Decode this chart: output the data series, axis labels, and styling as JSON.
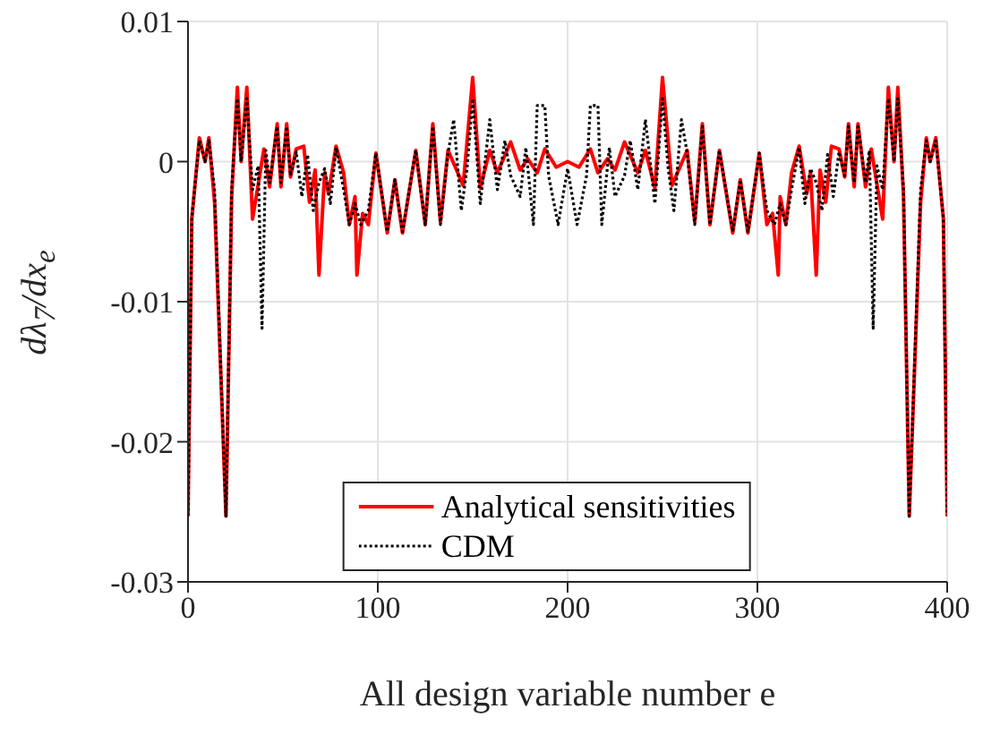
{
  "chart_data": {
    "type": "line",
    "xlabel": "All design variable number e",
    "ylabel": "dλ$_{7}$/dx$_{e}$",
    "xlim": [
      0,
      400
    ],
    "xticks": [
      0,
      100,
      200,
      300,
      400
    ],
    "ylim": [
      -0.03,
      0.01
    ],
    "yticks": [
      -0.03,
      -0.02,
      -0.01,
      0,
      0.01
    ],
    "grid": true,
    "legend": "bottom",
    "series": [
      {
        "name": "Analytical sensitivities",
        "color": "#ff0000",
        "line_style": "solid",
        "x": [
          0,
          2,
          6,
          9,
          11,
          14,
          20,
          23,
          26,
          28,
          31,
          34,
          38,
          40,
          43,
          47,
          49,
          52,
          54,
          57,
          61,
          64,
          67,
          69,
          72,
          74,
          78,
          82,
          85,
          88,
          89,
          92,
          95,
          99,
          105,
          109,
          113,
          120,
          125,
          129,
          133,
          137,
          145,
          150,
          154,
          159,
          163,
          170,
          175,
          179,
          184,
          188,
          194,
          200,
          206,
          212,
          216,
          221,
          225,
          230,
          237,
          241,
          246,
          250,
          255,
          263,
          267,
          271,
          275,
          280,
          287,
          291,
          295,
          301,
          305,
          308,
          311,
          312,
          315,
          318,
          322,
          326,
          328,
          331,
          333,
          336,
          339,
          343,
          346,
          348,
          351,
          353,
          357,
          360,
          362,
          366,
          369,
          372,
          374,
          377,
          380,
          386,
          389,
          391,
          394,
          398,
          400
        ],
        "values": [
          -0.0253,
          -0.0041,
          0.0017,
          0,
          0.0017,
          -0.0029,
          -0.0253,
          -0.0025,
          0.0053,
          0,
          0.0053,
          -0.0041,
          -0.0008,
          0.0009,
          -0.0018,
          0.0027,
          -0.0018,
          0.0027,
          -0.0011,
          0.0009,
          0.0011,
          -0.0029,
          -0.0006,
          -0.0081,
          -0.0008,
          -0.0023,
          0.0011,
          -0.0008,
          -0.0045,
          -0.0025,
          -0.0081,
          -0.0037,
          -0.0045,
          0.0006,
          -0.0051,
          -0.0013,
          -0.0051,
          0.0008,
          -0.0045,
          0.0027,
          -0.0043,
          0.0008,
          -0.0017,
          0.006,
          -0.0019,
          0.0008,
          -0.0008,
          0.0014,
          -0.0006,
          0.0002,
          -0.0008,
          0.0009,
          -0.0004,
          0,
          -0.0004,
          0.0009,
          -0.0008,
          0.0002,
          -0.0006,
          0.0014,
          -0.0008,
          0.0008,
          -0.0019,
          0.006,
          -0.0017,
          0.0008,
          -0.0043,
          0.0027,
          -0.0045,
          0.0008,
          -0.0051,
          -0.0013,
          -0.0051,
          0.0006,
          -0.0045,
          -0.0037,
          -0.0081,
          -0.0025,
          -0.0045,
          -0.0008,
          0.0011,
          -0.0023,
          -0.0008,
          -0.0081,
          -0.0006,
          -0.0029,
          0.0011,
          0.0009,
          -0.0011,
          0.0027,
          -0.0018,
          0.0027,
          -0.0018,
          0.0009,
          -0.0008,
          -0.0041,
          0.0053,
          0,
          0.0053,
          -0.0025,
          -0.0253,
          -0.0029,
          0.0017,
          0,
          0.0017,
          -0.0041,
          -0.0253
        ]
      },
      {
        "name": "CDM",
        "color": "#000000",
        "line_style": "dotted",
        "x": [
          0,
          2,
          6,
          9,
          11,
          14,
          20,
          23,
          26,
          28,
          31,
          34,
          37,
          39,
          41,
          43,
          47,
          49,
          52,
          54,
          57,
          60,
          63,
          66,
          69,
          72,
          75,
          78,
          82,
          85,
          88,
          91,
          95,
          99,
          105,
          109,
          113,
          120,
          125,
          129,
          133,
          137,
          140,
          144,
          147,
          150,
          154,
          159,
          163,
          167,
          170,
          175,
          178,
          182,
          184,
          188,
          190,
          195,
          200,
          205,
          210,
          212,
          216,
          218,
          222,
          225,
          230,
          233,
          237,
          241,
          246,
          250,
          253,
          256,
          260,
          263,
          267,
          271,
          275,
          280,
          287,
          291,
          295,
          301,
          305,
          309,
          312,
          315,
          318,
          322,
          325,
          328,
          331,
          334,
          337,
          340,
          343,
          346,
          348,
          351,
          353,
          357,
          359,
          361,
          363,
          366,
          369,
          372,
          374,
          377,
          380,
          386,
          389,
          391,
          394,
          398,
          400
        ],
        "values": [
          -0.0253,
          -0.004,
          0.0015,
          0,
          0.0015,
          -0.002,
          -0.0253,
          -0.002,
          0.0045,
          0,
          0.0045,
          -0.002,
          -0.0003,
          -0.0119,
          0.0008,
          -0.0015,
          0.0025,
          -0.0015,
          0.0025,
          -0.001,
          0.0007,
          -0.0025,
          0.0005,
          -0.0035,
          -0.0015,
          -0.0005,
          -0.003,
          0.001,
          -0.002,
          -0.0045,
          -0.003,
          -0.0045,
          -0.0035,
          0.0006,
          -0.005,
          -0.0013,
          -0.005,
          0.0008,
          -0.0045,
          0.0025,
          -0.0045,
          0.0006,
          0.003,
          -0.0035,
          -0.0005,
          0.0045,
          -0.003,
          0.003,
          -0.002,
          0.0015,
          -0.001,
          -0.0025,
          0.001,
          -0.0045,
          0.004,
          0.004,
          -0.001,
          -0.0045,
          -0.0005,
          -0.0045,
          -0.001,
          0.004,
          0.004,
          -0.0045,
          0.001,
          -0.0025,
          -0.001,
          0.0015,
          -0.002,
          0.003,
          -0.003,
          0.0045,
          -0.0005,
          -0.0035,
          0.003,
          0.0006,
          -0.0045,
          0.0025,
          -0.0045,
          0.0008,
          -0.005,
          -0.0013,
          -0.005,
          0.0006,
          -0.0035,
          -0.0045,
          -0.003,
          -0.0045,
          -0.002,
          0.001,
          -0.003,
          -0.0005,
          -0.0015,
          -0.0035,
          0.0005,
          -0.0025,
          0.0007,
          -0.001,
          0.0025,
          -0.0015,
          0.0025,
          -0.0015,
          0.0008,
          -0.0119,
          -0.0003,
          -0.002,
          0.0045,
          0,
          0.0045,
          -0.002,
          -0.0253,
          -0.002,
          0.0015,
          0,
          0.0015,
          -0.004,
          -0.0253
        ]
      }
    ]
  }
}
